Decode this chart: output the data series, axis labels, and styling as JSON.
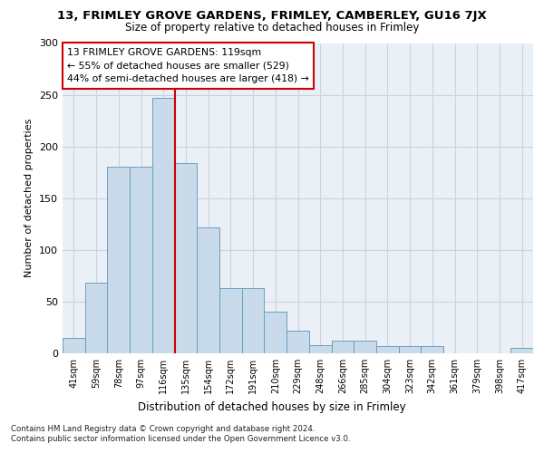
{
  "title1": "13, FRIMLEY GROVE GARDENS, FRIMLEY, CAMBERLEY, GU16 7JX",
  "title2": "Size of property relative to detached houses in Frimley",
  "xlabel": "Distribution of detached houses by size in Frimley",
  "ylabel": "Number of detached properties",
  "categories": [
    "41sqm",
    "59sqm",
    "78sqm",
    "97sqm",
    "116sqm",
    "135sqm",
    "154sqm",
    "172sqm",
    "191sqm",
    "210sqm",
    "229sqm",
    "248sqm",
    "266sqm",
    "285sqm",
    "304sqm",
    "323sqm",
    "342sqm",
    "361sqm",
    "379sqm",
    "398sqm",
    "417sqm"
  ],
  "values": [
    15,
    68,
    180,
    180,
    247,
    184,
    122,
    63,
    63,
    40,
    22,
    8,
    12,
    12,
    7,
    7,
    7,
    0,
    0,
    0,
    5
  ],
  "bar_color": "#c9daea",
  "bar_edge_color": "#6a9fc0",
  "grid_color": "#c8d4e0",
  "background_color": "#eaf0f6",
  "annotation_text1": "13 FRIMLEY GROVE GARDENS: 119sqm",
  "annotation_text2": "← 55% of detached houses are smaller (529)",
  "annotation_text3": "44% of semi-detached houses are larger (418) →",
  "annotation_box_color": "#ffffff",
  "annotation_box_edge": "#cc0000",
  "ref_line_color": "#cc0000",
  "ylim": [
    0,
    300
  ],
  "yticks": [
    0,
    50,
    100,
    150,
    200,
    250,
    300
  ],
  "footnote1": "Contains HM Land Registry data © Crown copyright and database right 2024.",
  "footnote2": "Contains public sector information licensed under the Open Government Licence v3.0."
}
